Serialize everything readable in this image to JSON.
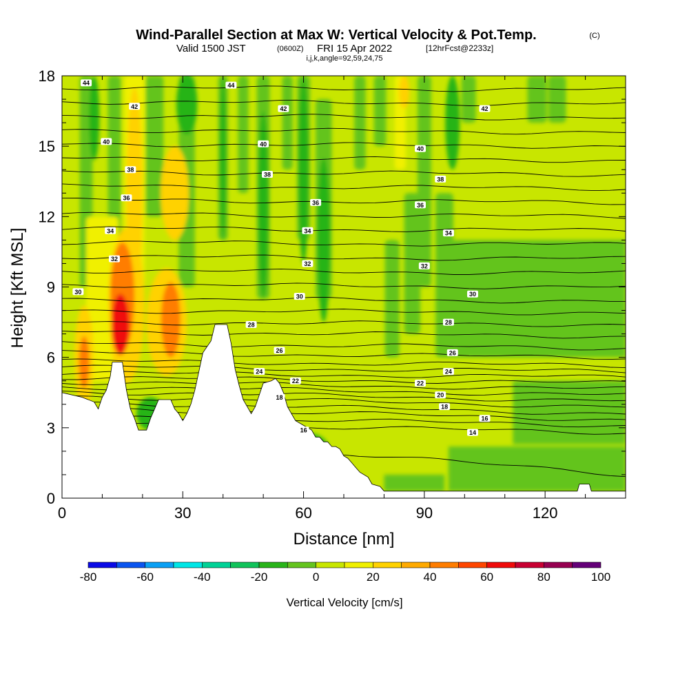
{
  "title": {
    "main": "Wind-Parallel Section at Max W: Vertical Velocity & Pot.Temp.",
    "copyright": "(C)",
    "valid_prefix": "Valid 1500 JST",
    "valid_utc": "(0600Z)",
    "valid_date": "FRI 15 Apr 2022",
    "forecast": "[12hrFcst@2233z]",
    "indices": "i,j,k,angle=92,59,24,75"
  },
  "chart_data": {
    "type": "heatmap",
    "xlabel": "Distance [nm]",
    "ylabel": "Height [Kft MSL]",
    "xlim": [
      0,
      140
    ],
    "ylim": [
      0,
      18
    ],
    "x_ticks": [
      "0",
      "30",
      "60",
      "90",
      "120"
    ],
    "x_tick_values": [
      0,
      30,
      60,
      90,
      120
    ],
    "x_minor_step": 10,
    "y_ticks": [
      "0",
      "3",
      "6",
      "9",
      "12",
      "15",
      "18"
    ],
    "y_tick_values": [
      0,
      3,
      6,
      9,
      12,
      15,
      18
    ],
    "y_minor_step": 1,
    "background_fill": "#c8e600",
    "terrain_kft": [
      [
        0,
        4.5
      ],
      [
        5,
        4.3
      ],
      [
        8,
        4.1
      ],
      [
        9,
        3.8
      ],
      [
        10,
        4.3
      ],
      [
        11,
        4.6
      ],
      [
        12,
        5.2
      ],
      [
        12.5,
        5.8
      ],
      [
        15,
        5.8
      ],
      [
        16,
        4.6
      ],
      [
        17,
        3.8
      ],
      [
        18,
        3.4
      ],
      [
        19,
        2.9
      ],
      [
        21,
        2.9
      ],
      [
        22,
        3.4
      ],
      [
        23,
        3.8
      ],
      [
        24,
        4.2
      ],
      [
        27,
        4.2
      ],
      [
        28,
        3.8
      ],
      [
        29,
        3.6
      ],
      [
        30,
        3.3
      ],
      [
        31,
        3.6
      ],
      [
        32,
        4.0
      ],
      [
        33,
        4.6
      ],
      [
        34,
        5.4
      ],
      [
        35,
        6.2
      ],
      [
        37,
        6.7
      ],
      [
        38,
        7.4
      ],
      [
        41,
        7.4
      ],
      [
        42,
        6.6
      ],
      [
        43,
        5.5
      ],
      [
        44,
        4.8
      ],
      [
        45,
        4.2
      ],
      [
        46,
        3.9
      ],
      [
        47,
        3.6
      ],
      [
        48,
        3.9
      ],
      [
        49,
        4.4
      ],
      [
        50,
        4.9
      ],
      [
        52,
        5.0
      ],
      [
        53,
        5.1
      ],
      [
        54,
        4.9
      ],
      [
        55,
        4.5
      ],
      [
        56,
        3.9
      ],
      [
        57,
        3.6
      ],
      [
        58,
        3.3
      ],
      [
        60,
        3.1
      ],
      [
        62,
        2.9
      ],
      [
        63,
        2.6
      ],
      [
        64,
        2.6
      ],
      [
        65,
        2.4
      ],
      [
        66,
        2.4
      ],
      [
        67,
        2.2
      ],
      [
        68,
        2.2
      ],
      [
        69,
        2.1
      ],
      [
        70,
        1.8
      ],
      [
        71,
        1.7
      ],
      [
        72,
        1.5
      ],
      [
        73,
        1.3
      ],
      [
        74,
        1.1
      ],
      [
        76,
        0.9
      ],
      [
        77,
        0.6
      ],
      [
        79,
        0.5
      ],
      [
        80,
        0.3
      ],
      [
        128,
        0.3
      ],
      [
        128.5,
        0.6
      ],
      [
        131,
        0.6
      ],
      [
        131.5,
        0.3
      ],
      [
        140,
        0.3
      ]
    ],
    "w_cells": [
      {
        "x": 14.5,
        "y": 7.4,
        "rx": 2.2,
        "ry": 1.3,
        "w": 60
      },
      {
        "x": 15,
        "y": 8.6,
        "rx": 3.0,
        "ry": 2.3,
        "w": 40
      },
      {
        "x": 16,
        "y": 8.2,
        "rx": 4.5,
        "ry": 3.3,
        "w": 20
      },
      {
        "x": 27,
        "y": 7.6,
        "rx": 2.4,
        "ry": 1.6,
        "w": 40
      },
      {
        "x": 26,
        "y": 7.5,
        "rx": 5.0,
        "ry": 2.3,
        "w": 20
      },
      {
        "x": 5.5,
        "y": 5.8,
        "rx": 1.3,
        "ry": 1.1,
        "w": 40
      },
      {
        "x": 5.5,
        "y": 6.0,
        "rx": 2.4,
        "ry": 2.2,
        "w": 20
      },
      {
        "x": 18,
        "y": 13.0,
        "rx": 2.0,
        "ry": 4.5,
        "w": 20
      },
      {
        "x": 28,
        "y": 13.0,
        "rx": 3.5,
        "ry": 2.0,
        "w": 20
      },
      {
        "x": 85,
        "y": 17.3,
        "rx": 1.3,
        "ry": 0.7,
        "w": 20
      },
      {
        "x": 52,
        "y": 4.6,
        "rx": 1.5,
        "ry": 0.5,
        "w": 20
      },
      {
        "x": 8,
        "y": 16.2,
        "rx": 1.3,
        "ry": 1.8,
        "w": -20
      },
      {
        "x": 31,
        "y": 16.8,
        "rx": 2.6,
        "ry": 1.3,
        "w": -20
      },
      {
        "x": 40,
        "y": 14.5,
        "rx": 0.8,
        "ry": 3.5,
        "w": -20
      },
      {
        "x": 50,
        "y": 12.5,
        "rx": 1.3,
        "ry": 4.0,
        "w": -20
      },
      {
        "x": 60,
        "y": 14.0,
        "rx": 1.3,
        "ry": 4.0,
        "w": -20
      },
      {
        "x": 65,
        "y": 11.0,
        "rx": 1.6,
        "ry": 3.5,
        "w": -20
      },
      {
        "x": 97,
        "y": 16.0,
        "rx": 1.8,
        "ry": 2.0,
        "w": -20
      },
      {
        "x": 22,
        "y": 3.6,
        "rx": 3.5,
        "ry": 0.7,
        "w": -20
      },
      {
        "x": 60,
        "y": 2.2,
        "rx": 6.0,
        "ry": 0.6,
        "w": -20
      }
    ],
    "w_bands": [
      {
        "x": 6,
        "hw": 1.6,
        "y0": 9,
        "y1": 18,
        "w": -10
      },
      {
        "x": 13,
        "hw": 1.6,
        "y0": 9.5,
        "y1": 18,
        "w": -10
      },
      {
        "x": 19,
        "hw": 1.4,
        "y0": 15,
        "y1": 18,
        "w": -10
      },
      {
        "x": 23,
        "hw": 2.2,
        "y0": 12,
        "y1": 18,
        "w": -10
      },
      {
        "x": 31,
        "hw": 2.0,
        "y0": 9,
        "y1": 18,
        "w": -10
      },
      {
        "x": 40,
        "hw": 1.2,
        "y0": 11,
        "y1": 18,
        "w": -10
      },
      {
        "x": 45,
        "hw": 1.3,
        "y0": 13,
        "y1": 18,
        "w": -10
      },
      {
        "x": 50,
        "hw": 1.6,
        "y0": 8.5,
        "y1": 18,
        "w": -10
      },
      {
        "x": 56,
        "hw": 1.3,
        "y0": 14,
        "y1": 18,
        "w": -10
      },
      {
        "x": 60,
        "hw": 1.6,
        "y0": 11,
        "y1": 18,
        "w": -10
      },
      {
        "x": 65,
        "hw": 2.0,
        "y0": 8.5,
        "y1": 17,
        "w": -10
      },
      {
        "x": 74,
        "hw": 1.4,
        "y0": 14,
        "y1": 18,
        "w": -10
      },
      {
        "x": 79,
        "hw": 1.5,
        "y0": 15,
        "y1": 18,
        "w": -10
      },
      {
        "x": 82,
        "hw": 1.8,
        "y0": 6,
        "y1": 11,
        "w": -10
      },
      {
        "x": 87,
        "hw": 2.0,
        "y0": 7,
        "y1": 13,
        "w": -10
      },
      {
        "x": 90,
        "hw": 1.7,
        "y0": 9,
        "y1": 18,
        "w": -10
      },
      {
        "x": 95,
        "hw": 2.2,
        "y0": 6,
        "y1": 13,
        "w": -10
      },
      {
        "x": 101,
        "hw": 1.8,
        "y0": 16,
        "y1": 18,
        "w": -10
      },
      {
        "x": 108,
        "hw": 1.8,
        "y0": 6.5,
        "y1": 10,
        "w": -10
      },
      {
        "x": 118,
        "hw": 2.4,
        "y0": 16,
        "y1": 18,
        "w": -10
      },
      {
        "x": 123,
        "hw": 2.2,
        "y0": 16,
        "y1": 18,
        "w": -10
      },
      {
        "x": 10,
        "hw": 4.0,
        "y0": 5,
        "y1": 12,
        "w": 10
      },
      {
        "x": 18,
        "hw": 2.5,
        "y0": 9,
        "y1": 18,
        "w": 10
      },
      {
        "x": 84,
        "hw": 1.4,
        "y0": 14,
        "y1": 18,
        "w": 10
      }
    ],
    "w_regions": [
      {
        "x0": 96,
        "x1": 140,
        "y0": 6,
        "y1": 11,
        "w": -10
      },
      {
        "x0": 112,
        "x1": 140,
        "y0": 2.3,
        "y1": 5,
        "w": -10
      },
      {
        "x0": 96,
        "x1": 140,
        "y0": 0.3,
        "y1": 2.2,
        "w": -10
      },
      {
        "x0": 80,
        "x1": 95,
        "y0": 0.3,
        "y1": 1.0,
        "w": -10
      },
      {
        "x0": 108,
        "x1": 126,
        "y0": 6.4,
        "y1": 9.6,
        "w": -10
      }
    ],
    "theta_levels": [
      {
        "value": 14,
        "y0": 1.0,
        "y1": 2.8
      },
      {
        "value": 15,
        "y0": 2.8,
        "y1": 3.2
      },
      {
        "value": 16,
        "y0": 3.1,
        "y1": 3.5
      },
      {
        "value": 17,
        "y0": 3.35,
        "y1": 3.85
      },
      {
        "value": 18,
        "y0": 3.6,
        "y1": 4.1
      },
      {
        "value": 19,
        "y0": 3.9,
        "y1": 4.35
      },
      {
        "value": 20,
        "y0": 4.15,
        "y1": 4.55
      },
      {
        "value": 21,
        "y0": 4.4,
        "y1": 4.75
      },
      {
        "value": 22,
        "y0": 4.65,
        "y1": 4.95
      },
      {
        "value": 23,
        "y0": 4.9,
        "y1": 5.15
      },
      {
        "value": 24,
        "y0": 5.15,
        "y1": 5.35
      },
      {
        "value": 25,
        "y0": 5.4,
        "y1": 5.6
      },
      {
        "value": 26,
        "y0": 5.65,
        "y1": 5.85
      },
      {
        "value": 27,
        "y0": 6.0,
        "y1": 6.2
      },
      {
        "value": 28,
        "y0": 6.4,
        "y1": 6.6
      },
      {
        "value": 29,
        "y0": 6.9,
        "y1": 7.1
      },
      {
        "value": 30,
        "y0": 7.4,
        "y1": 7.5
      },
      {
        "value": 31,
        "y0": 7.9,
        "y1": 8.0
      },
      {
        "value": 32,
        "y0": 8.4,
        "y1": 8.5
      },
      {
        "value": 33,
        "y0": 9.0,
        "y1": 9.1
      },
      {
        "value": 34,
        "y0": 9.6,
        "y1": 9.7
      },
      {
        "value": 35,
        "y0": 10.2,
        "y1": 10.3
      },
      {
        "value": 36,
        "y0": 10.8,
        "y1": 10.9
      },
      {
        "value": 37,
        "y0": 11.4,
        "y1": 11.5
      },
      {
        "value": 38,
        "y0": 12.0,
        "y1": 12.1
      },
      {
        "value": 39,
        "y0": 12.6,
        "y1": 12.7
      },
      {
        "value": 40,
        "y0": 13.2,
        "y1": 13.3
      },
      {
        "value": 41,
        "y0": 13.8,
        "y1": 13.9
      },
      {
        "value": 42,
        "y0": 14.4,
        "y1": 14.5
      },
      {
        "value": 43,
        "y0": 15.0,
        "y1": 15.1
      },
      {
        "value": 44,
        "y0": 15.6,
        "y1": 15.7
      },
      {
        "value": 45,
        "y0": 16.2,
        "y1": 16.3
      },
      {
        "value": 46,
        "y0": 16.8,
        "y1": 16.9
      },
      {
        "value": 47,
        "y0": 17.4,
        "y1": 17.5
      }
    ],
    "theta_labels": [
      {
        "text": "44",
        "x": 6,
        "y": 17.7
      },
      {
        "text": "44",
        "x": 42,
        "y": 17.6
      },
      {
        "text": "42",
        "x": 18,
        "y": 16.7
      },
      {
        "text": "42",
        "x": 55,
        "y": 16.6
      },
      {
        "text": "42",
        "x": 105,
        "y": 16.6
      },
      {
        "text": "40",
        "x": 11,
        "y": 15.2
      },
      {
        "text": "40",
        "x": 50,
        "y": 15.1
      },
      {
        "text": "40",
        "x": 89,
        "y": 14.9
      },
      {
        "text": "38",
        "x": 17,
        "y": 14.0
      },
      {
        "text": "38",
        "x": 51,
        "y": 13.8
      },
      {
        "text": "38",
        "x": 94,
        "y": 13.6
      },
      {
        "text": "36",
        "x": 16,
        "y": 12.8
      },
      {
        "text": "36",
        "x": 63,
        "y": 12.6
      },
      {
        "text": "36",
        "x": 89,
        "y": 12.5
      },
      {
        "text": "34",
        "x": 12,
        "y": 11.4
      },
      {
        "text": "34",
        "x": 61,
        "y": 11.4
      },
      {
        "text": "34",
        "x": 96,
        "y": 11.3
      },
      {
        "text": "32",
        "x": 13,
        "y": 10.2
      },
      {
        "text": "32",
        "x": 61,
        "y": 10.0
      },
      {
        "text": "32",
        "x": 90,
        "y": 9.9
      },
      {
        "text": "30",
        "x": 4,
        "y": 8.8
      },
      {
        "text": "30",
        "x": 59,
        "y": 8.6
      },
      {
        "text": "30",
        "x": 102,
        "y": 8.7
      },
      {
        "text": "28",
        "x": 47,
        "y": 7.4
      },
      {
        "text": "28",
        "x": 96,
        "y": 7.5
      },
      {
        "text": "26",
        "x": 54,
        "y": 6.3
      },
      {
        "text": "26",
        "x": 97,
        "y": 6.2
      },
      {
        "text": "24",
        "x": 49,
        "y": 5.4
      },
      {
        "text": "24",
        "x": 96,
        "y": 5.4
      },
      {
        "text": "22",
        "x": 58,
        "y": 5.0
      },
      {
        "text": "22",
        "x": 89,
        "y": 4.9
      },
      {
        "text": "20",
        "x": 94,
        "y": 4.4
      },
      {
        "text": "18",
        "x": 54,
        "y": 4.3
      },
      {
        "text": "18",
        "x": 95,
        "y": 3.9
      },
      {
        "text": "16",
        "x": 60,
        "y": 2.9
      },
      {
        "text": "16",
        "x": 105,
        "y": 3.4
      },
      {
        "text": "14",
        "x": 102,
        "y": 2.8
      }
    ],
    "colorbar": {
      "label": "Vertical Velocity [cm/s]",
      "levels": [
        -80,
        -70,
        -60,
        -50,
        -40,
        -30,
        -20,
        -10,
        0,
        10,
        20,
        30,
        40,
        50,
        60,
        70,
        80,
        90,
        100
      ],
      "colors": [
        "#0a0ae6",
        "#0a55f0",
        "#0aa0f5",
        "#00e6e6",
        "#00d296",
        "#10c35a",
        "#28b419",
        "#64c41e",
        "#c8e600",
        "#f0f000",
        "#ffd200",
        "#ffaa00",
        "#ff7d00",
        "#ff4600",
        "#f00a0a",
        "#c80032",
        "#960050",
        "#640078"
      ],
      "tick_labels": [
        "-80",
        "-60",
        "-40",
        "-20",
        "0",
        "20",
        "40",
        "60",
        "80",
        "100"
      ],
      "tick_values": [
        -80,
        -60,
        -40,
        -20,
        0,
        20,
        40,
        60,
        80,
        100
      ]
    }
  }
}
